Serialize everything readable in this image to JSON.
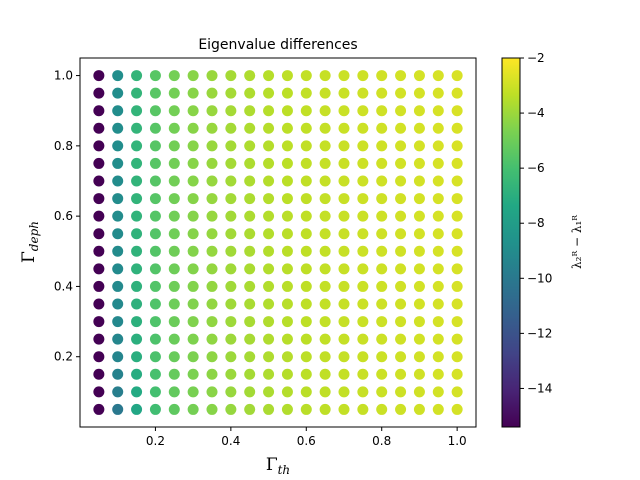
{
  "chart_data": {
    "type": "scatter",
    "title": "Eigenvalue differences",
    "xlabel": {
      "main": "Γ",
      "sub": "th"
    },
    "ylabel": {
      "main": "Γ",
      "sub": "deph"
    },
    "colorbar_label": "λ₂ᴿ − λ₁ᴿ",
    "colormap": "viridis",
    "xlim": [
      0.0,
      1.05
    ],
    "ylim": [
      0.0,
      1.05
    ],
    "x_ticks": [
      0.2,
      0.4,
      0.6,
      0.8,
      1.0
    ],
    "y_ticks": [
      0.2,
      0.4,
      0.6,
      0.8,
      1.0
    ],
    "tick_labels_x": [
      "0.2",
      "0.4",
      "0.6",
      "0.8",
      "1.0"
    ],
    "tick_labels_y": [
      "0.2",
      "0.4",
      "0.6",
      "0.8",
      "1.0"
    ],
    "colorbar_range": [
      -15.4,
      -2.0
    ],
    "colorbar_ticks": [
      -2,
      -4,
      -6,
      -8,
      -10,
      -12,
      -14
    ],
    "colorbar_tick_labels": [
      "−2",
      "−4",
      "−6",
      "−8",
      "−10",
      "−12",
      "−14"
    ],
    "x_values": [
      0.05,
      0.1,
      0.15,
      0.2,
      0.25,
      0.3,
      0.35,
      0.4,
      0.45,
      0.5,
      0.55,
      0.6,
      0.65,
      0.7,
      0.75,
      0.8,
      0.85,
      0.9,
      0.95,
      1.0
    ],
    "y_values": [
      0.05,
      0.1,
      0.15,
      0.2,
      0.25,
      0.3,
      0.35,
      0.4,
      0.45,
      0.5,
      0.55,
      0.6,
      0.65,
      0.7,
      0.75,
      0.8,
      0.85,
      0.9,
      0.95,
      1.0
    ],
    "value_model": "z ≈ −2 − 0.67/x − 0.2/(x+y)",
    "grid": false
  }
}
